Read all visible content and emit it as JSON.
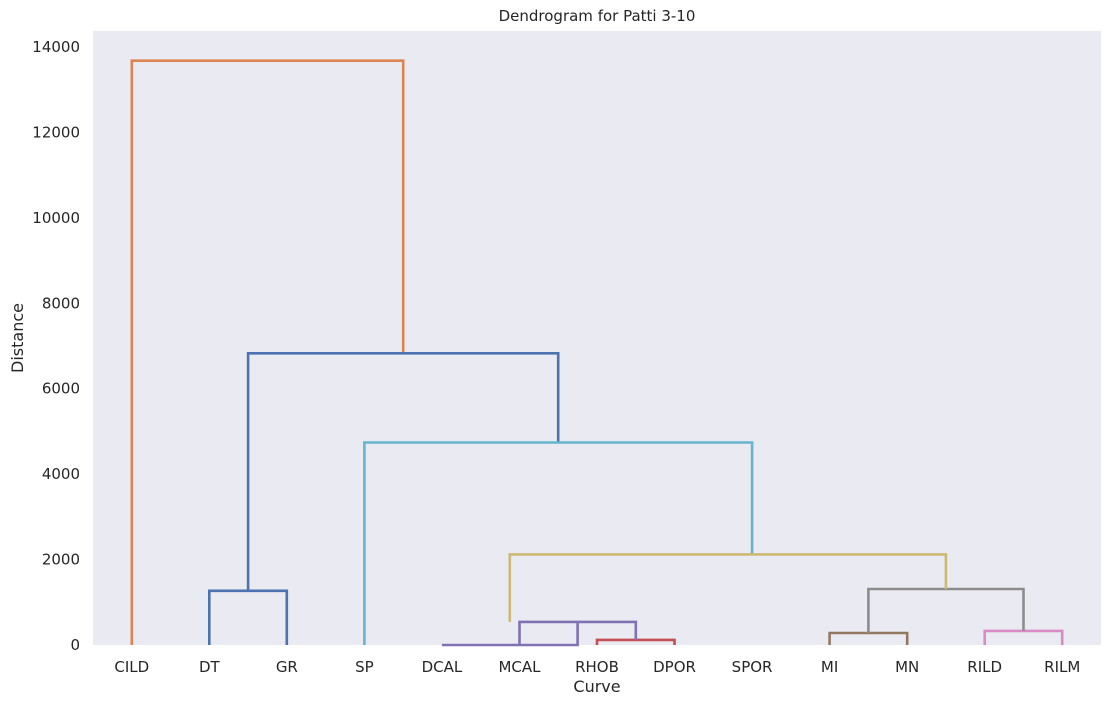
{
  "chart_data": {
    "type": "dendrogram",
    "title": "Dendrogram for Patti 3-10",
    "xlabel": "Curve",
    "ylabel": "Distance",
    "ylim": [
      0,
      14000
    ],
    "yticks": [
      0,
      2000,
      4000,
      6000,
      8000,
      10000,
      12000,
      14000
    ],
    "grid": false,
    "leaves": [
      "CILD",
      "DT",
      "GR",
      "SP",
      "DCAL",
      "MCAL",
      "RHOB",
      "DPOR",
      "SPOR",
      "MI",
      "MN",
      "RILD",
      "RILM"
    ],
    "links": [
      {
        "x": [
          0.0,
          0.0,
          3.5,
          3.5
        ],
        "y": [
          0,
          13680,
          13680,
          6830
        ],
        "color": "#dd8452"
      },
      {
        "x": [
          1.0,
          1.0,
          2.0,
          2.0
        ],
        "y": [
          0,
          1270,
          1270,
          0
        ],
        "color": "#4c72b0"
      },
      {
        "x": [
          1.5,
          1.5,
          5.5,
          5.5
        ],
        "y": [
          1270,
          6830,
          6830,
          4740
        ],
        "color": "#4c72b0"
      },
      {
        "x": [
          3.0,
          3.0,
          8.0,
          8.0
        ],
        "y": [
          0,
          4740,
          4740,
          2120
        ],
        "color": "#64b5cd"
      },
      {
        "x": [
          6.0,
          6.0,
          7.0,
          7.0
        ],
        "y": [
          0,
          120,
          120,
          0
        ],
        "color": "#c44e52"
      },
      {
        "x": [
          5.0,
          5.0,
          6.5,
          6.5
        ],
        "y": [
          0,
          540,
          540,
          120
        ],
        "color": "#8172b3"
      },
      {
        "x": [
          4.0,
          4.0,
          5.75,
          5.75
        ],
        "y": [
          0,
          0,
          0,
          540
        ],
        "color": "#8172b3"
      },
      {
        "x": [
          9.0,
          9.0,
          10.0,
          10.0
        ],
        "y": [
          0,
          280,
          280,
          0
        ],
        "color": "#937860"
      },
      {
        "x": [
          11.0,
          11.0,
          12.0,
          12.0
        ],
        "y": [
          0,
          330,
          330,
          0
        ],
        "color": "#da8bc3"
      },
      {
        "x": [
          9.5,
          9.5,
          11.5,
          11.5
        ],
        "y": [
          280,
          1310,
          1310,
          330
        ],
        "color": "#8c8c8c"
      },
      {
        "x": [
          4.875,
          4.875,
          10.5,
          10.5
        ],
        "y": [
          540,
          2120,
          2120,
          1310
        ],
        "color": "#ccb974"
      }
    ]
  }
}
